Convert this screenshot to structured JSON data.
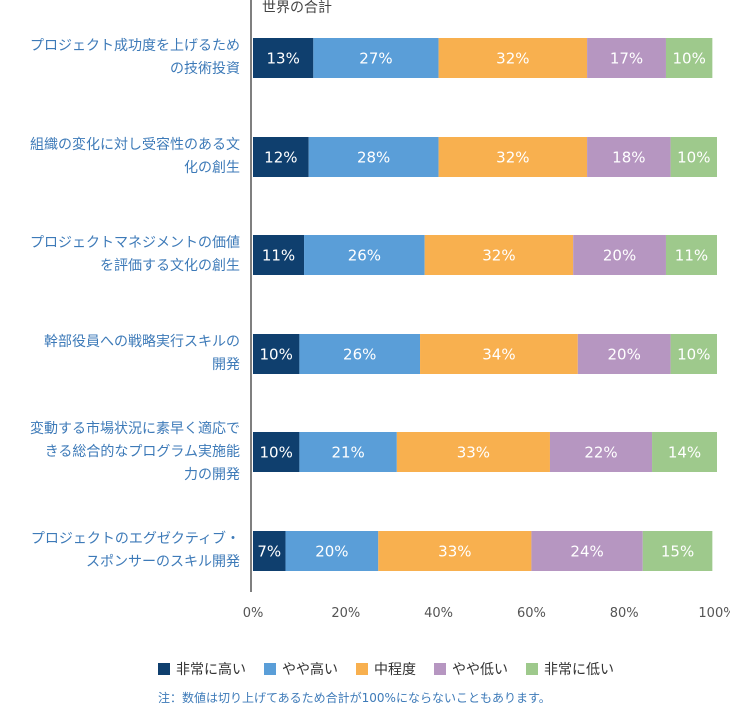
{
  "chart_data": {
    "type": "bar",
    "orientation": "horizontal",
    "stacked": true,
    "title": "世界の合計",
    "categories": [
      "プロジェクト成功度を上げるための技術投資",
      "組織の変化に対し受容性のある文化の創生",
      "プロジェクトマネジメントの価値を評価する文化の創生",
      "幹部役員への戦略実行スキルの開発",
      "変動する市場状況に素早く適応できる総合的なプログラム実施能力の開発",
      "プロジェクトのエグゼクティブ・スポンサーのスキル開発"
    ],
    "category_lines": [
      [
        "プロジェクト成功度を上げるため",
        "の技術投資"
      ],
      [
        "組織の変化に対し受容性のある文",
        "化の創生"
      ],
      [
        "プロジェクトマネジメントの価値",
        "を評価する文化の創生"
      ],
      [
        "幹部役員への戦略実行スキルの",
        "開発"
      ],
      [
        "変動する市場状況に素早く適応で",
        "きる総合的なプログラム実施能",
        "力の開発"
      ],
      [
        "プロジェクトのエグゼクティブ・",
        "スポンサーのスキル開発"
      ]
    ],
    "series": [
      {
        "name": "非常に高い",
        "color": "#0f3f6e",
        "values": [
          13,
          12,
          11,
          10,
          10,
          7
        ]
      },
      {
        "name": "やや高い",
        "color": "#5a9ed8",
        "values": [
          27,
          28,
          26,
          26,
          21,
          20
        ]
      },
      {
        "name": "中程度",
        "color": "#f8b04f",
        "values": [
          32,
          32,
          32,
          34,
          33,
          33
        ]
      },
      {
        "name": "やや低い",
        "color": "#b696c1",
        "values": [
          17,
          18,
          20,
          20,
          22,
          24
        ]
      },
      {
        "name": "非常に低い",
        "color": "#9ec98c",
        "values": [
          10,
          10,
          11,
          10,
          14,
          15
        ]
      }
    ],
    "xlim": [
      0,
      100
    ],
    "xticks": [
      "0%",
      "20%",
      "40%",
      "60%",
      "80%",
      "100%"
    ],
    "legend_position": "bottom",
    "grid": false
  },
  "note": "注：数値は切り上げてあるため合計が100%にならないこともあります。"
}
